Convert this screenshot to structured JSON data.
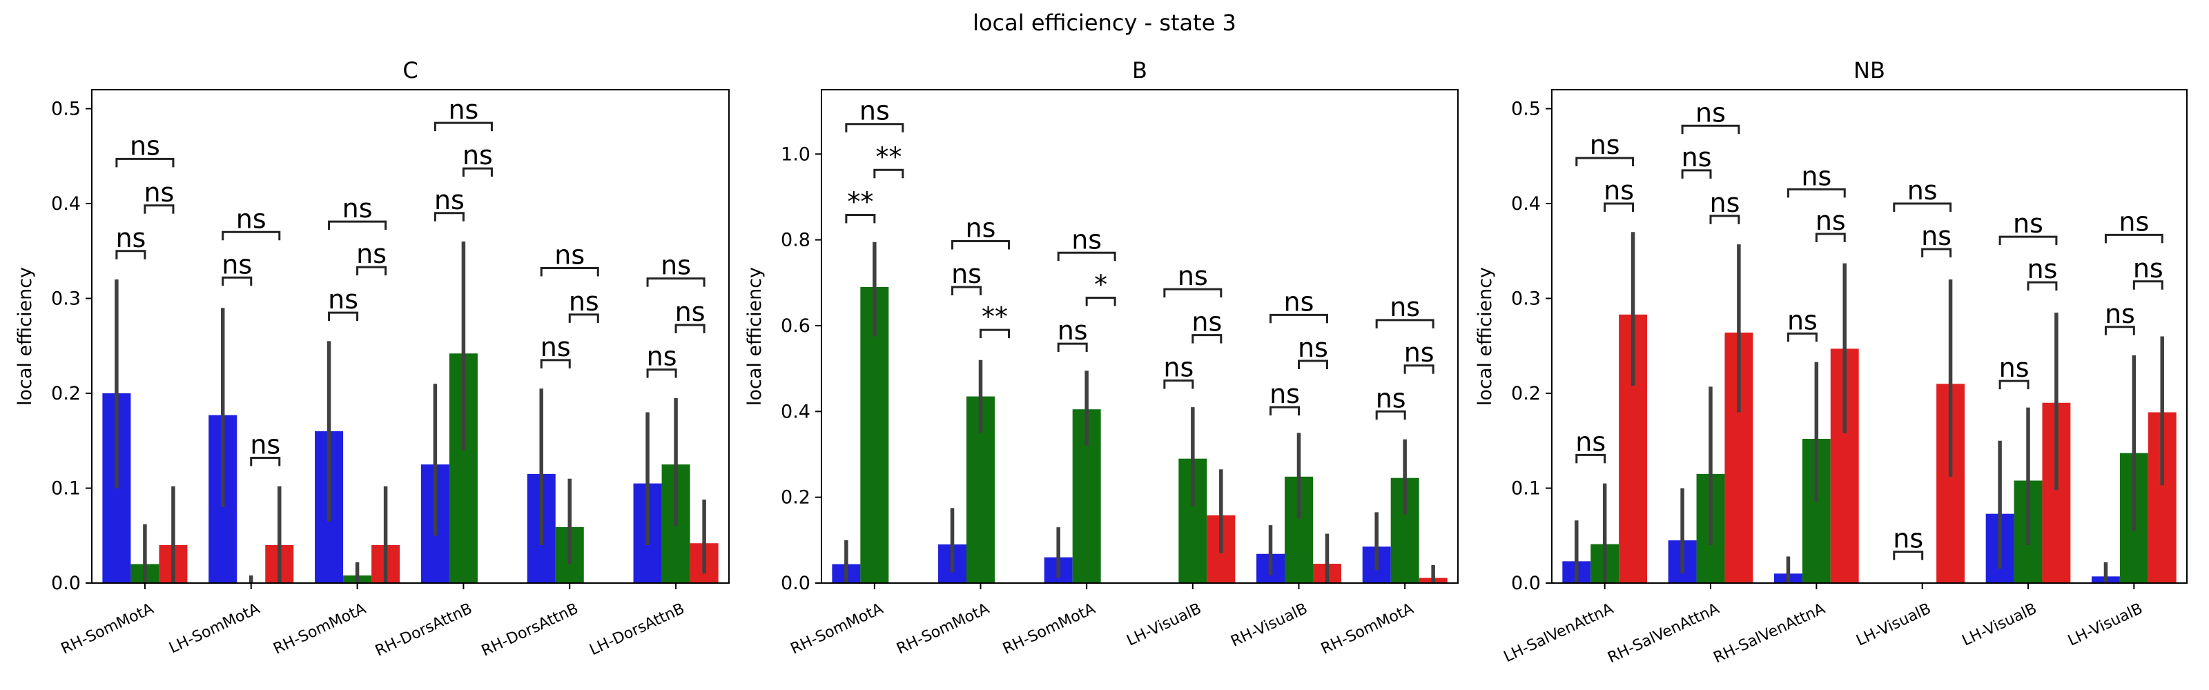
{
  "figure": {
    "title": "local efficiency - state 3"
  },
  "colors": {
    "blue": "#2020e0",
    "green": "#107010",
    "red": "#e02020",
    "errorbar": "#404040"
  },
  "chart_data": [
    {
      "type": "bar",
      "title": "C",
      "ylabel": "local efficiency",
      "ylim": [
        0,
        0.52
      ],
      "yticks": [
        0.0,
        0.1,
        0.2,
        0.3,
        0.4,
        0.5
      ],
      "ytick_labels": [
        "0.0",
        "0.1",
        "0.2",
        "0.3",
        "0.4",
        "0.5"
      ],
      "categories": [
        "RH-SomMotA",
        "LH-SomMotA",
        "RH-SomMotA",
        "RH-DorsAttnB",
        "RH-DorsAttnB",
        "LH-DorsAttnB"
      ],
      "series": [
        {
          "color": "blue",
          "values": [
            0.2,
            0.177,
            0.16,
            0.125,
            0.115,
            0.105
          ],
          "ci": [
            [
              0.1,
              0.32
            ],
            [
              0.08,
              0.29
            ],
            [
              0.065,
              0.255
            ],
            [
              0.05,
              0.21
            ],
            [
              0.04,
              0.205
            ],
            [
              0.04,
              0.18
            ]
          ]
        },
        {
          "color": "green",
          "values": [
            0.02,
            0.0,
            0.008,
            0.242,
            0.059,
            0.125
          ],
          "ci": [
            [
              0.0,
              0.062
            ],
            [
              0.0,
              0.008
            ],
            [
              0.0,
              0.022
            ],
            [
              0.14,
              0.36
            ],
            [
              0.02,
              0.11
            ],
            [
              0.06,
              0.195
            ]
          ]
        },
        {
          "color": "red",
          "values": [
            0.04,
            0.04,
            0.04,
            0.0,
            0.0,
            0.042
          ],
          "ci": [
            [
              0.0,
              0.102
            ],
            [
              0.0,
              0.102
            ],
            [
              0.0,
              0.102
            ],
            [
              0.0,
              0.0
            ],
            [
              0.0,
              0.0
            ],
            [
              0.01,
              0.088
            ]
          ]
        }
      ],
      "annotations": [
        {
          "group": 0,
          "from": 0,
          "to": 1,
          "y": 0.35,
          "label": "ns"
        },
        {
          "group": 0,
          "from": 1,
          "to": 2,
          "y": 0.398,
          "label": "ns"
        },
        {
          "group": 0,
          "from": 0,
          "to": 2,
          "y": 0.447,
          "label": "ns"
        },
        {
          "group": 1,
          "from": 0,
          "to": 1,
          "y": 0.322,
          "label": "ns"
        },
        {
          "group": 1,
          "from": 1,
          "to": 2,
          "y": 0.132,
          "label": "ns"
        },
        {
          "group": 1,
          "from": 0,
          "to": 2,
          "y": 0.37,
          "label": "ns"
        },
        {
          "group": 2,
          "from": 0,
          "to": 1,
          "y": 0.285,
          "label": "ns"
        },
        {
          "group": 2,
          "from": 1,
          "to": 2,
          "y": 0.333,
          "label": "ns"
        },
        {
          "group": 2,
          "from": 0,
          "to": 2,
          "y": 0.381,
          "label": "ns"
        },
        {
          "group": 3,
          "from": 0,
          "to": 1,
          "y": 0.39,
          "label": "ns"
        },
        {
          "group": 3,
          "from": 1,
          "to": 2,
          "y": 0.437,
          "label": "ns"
        },
        {
          "group": 3,
          "from": 0,
          "to": 2,
          "y": 0.485,
          "label": "ns"
        },
        {
          "group": 4,
          "from": 0,
          "to": 1,
          "y": 0.235,
          "label": "ns"
        },
        {
          "group": 4,
          "from": 1,
          "to": 2,
          "y": 0.283,
          "label": "ns"
        },
        {
          "group": 4,
          "from": 0,
          "to": 2,
          "y": 0.332,
          "label": "ns"
        },
        {
          "group": 5,
          "from": 0,
          "to": 1,
          "y": 0.225,
          "label": "ns"
        },
        {
          "group": 5,
          "from": 1,
          "to": 2,
          "y": 0.272,
          "label": "ns"
        },
        {
          "group": 5,
          "from": 0,
          "to": 2,
          "y": 0.321,
          "label": "ns"
        }
      ]
    },
    {
      "type": "bar",
      "title": "B",
      "ylabel": "local efficiency",
      "ylim": [
        0,
        1.15
      ],
      "yticks": [
        0.0,
        0.2,
        0.4,
        0.6,
        0.8,
        1.0
      ],
      "ytick_labels": [
        "0.0",
        "0.2",
        "0.4",
        "0.6",
        "0.8",
        "1.0"
      ],
      "categories": [
        "RH-SomMotA",
        "RH-SomMotA",
        "RH-SomMotA",
        "LH-VisualB",
        "RH-VisualB",
        "RH-SomMotA"
      ],
      "series": [
        {
          "color": "blue",
          "values": [
            0.044,
            0.09,
            0.06,
            0.0,
            0.068,
            0.085
          ],
          "ci": [
            [
              0.0,
              0.1
            ],
            [
              0.025,
              0.175
            ],
            [
              0.012,
              0.13
            ],
            [
              0.0,
              0.0
            ],
            [
              0.018,
              0.135
            ],
            [
              0.03,
              0.165
            ]
          ]
        },
        {
          "color": "green",
          "values": [
            0.69,
            0.435,
            0.405,
            0.29,
            0.248,
            0.245
          ],
          "ci": [
            [
              0.575,
              0.795
            ],
            [
              0.35,
              0.52
            ],
            [
              0.32,
              0.495
            ],
            [
              0.18,
              0.41
            ],
            [
              0.15,
              0.35
            ],
            [
              0.16,
              0.335
            ]
          ]
        },
        {
          "color": "red",
          "values": [
            0.0,
            0.0,
            0.0,
            0.158,
            0.045,
            0.012
          ],
          "ci": [
            [
              0.0,
              0.0
            ],
            [
              0.0,
              0.0
            ],
            [
              0.0,
              0.0
            ],
            [
              0.07,
              0.265
            ],
            [
              0.0,
              0.115
            ],
            [
              0.0,
              0.042
            ]
          ]
        }
      ],
      "annotations": [
        {
          "group": 0,
          "from": 0,
          "to": 1,
          "y": 0.858,
          "label": "**"
        },
        {
          "group": 0,
          "from": 1,
          "to": 2,
          "y": 0.963,
          "label": "**"
        },
        {
          "group": 0,
          "from": 0,
          "to": 2,
          "y": 1.07,
          "label": "ns"
        },
        {
          "group": 1,
          "from": 0,
          "to": 1,
          "y": 0.69,
          "label": "ns"
        },
        {
          "group": 1,
          "from": 1,
          "to": 2,
          "y": 0.59,
          "label": "**"
        },
        {
          "group": 1,
          "from": 0,
          "to": 2,
          "y": 0.797,
          "label": "ns"
        },
        {
          "group": 2,
          "from": 0,
          "to": 1,
          "y": 0.558,
          "label": "ns"
        },
        {
          "group": 2,
          "from": 1,
          "to": 2,
          "y": 0.665,
          "label": "*"
        },
        {
          "group": 2,
          "from": 0,
          "to": 2,
          "y": 0.77,
          "label": "ns"
        },
        {
          "group": 3,
          "from": 0,
          "to": 1,
          "y": 0.472,
          "label": "ns"
        },
        {
          "group": 3,
          "from": 1,
          "to": 2,
          "y": 0.578,
          "label": "ns"
        },
        {
          "group": 3,
          "from": 0,
          "to": 2,
          "y": 0.685,
          "label": "ns"
        },
        {
          "group": 4,
          "from": 0,
          "to": 1,
          "y": 0.41,
          "label": "ns"
        },
        {
          "group": 4,
          "from": 1,
          "to": 2,
          "y": 0.518,
          "label": "ns"
        },
        {
          "group": 4,
          "from": 0,
          "to": 2,
          "y": 0.625,
          "label": "ns"
        },
        {
          "group": 5,
          "from": 0,
          "to": 1,
          "y": 0.4,
          "label": "ns"
        },
        {
          "group": 5,
          "from": 1,
          "to": 2,
          "y": 0.507,
          "label": "ns"
        },
        {
          "group": 5,
          "from": 0,
          "to": 2,
          "y": 0.613,
          "label": "ns"
        }
      ]
    },
    {
      "type": "bar",
      "title": "NB",
      "ylabel": "local efficiency",
      "ylim": [
        0,
        0.52
      ],
      "yticks": [
        0.0,
        0.1,
        0.2,
        0.3,
        0.4,
        0.5
      ],
      "ytick_labels": [
        "0.0",
        "0.1",
        "0.2",
        "0.3",
        "0.4",
        "0.5"
      ],
      "categories": [
        "LH-SalVenAttnA",
        "RH-SalVenAttnA",
        "RH-SalVenAttnA",
        "LH-VisualB",
        "LH-VisualB",
        "LH-VisualB"
      ],
      "series": [
        {
          "color": "blue",
          "values": [
            0.023,
            0.045,
            0.01,
            0.0,
            0.073,
            0.007
          ],
          "ci": [
            [
              0.0,
              0.066
            ],
            [
              0.01,
              0.1
            ],
            [
              0.0,
              0.028
            ],
            [
              0.0,
              0.0
            ],
            [
              0.015,
              0.15
            ],
            [
              0.0,
              0.022
            ]
          ]
        },
        {
          "color": "green",
          "values": [
            0.041,
            0.115,
            0.152,
            0.0,
            0.108,
            0.137
          ],
          "ci": [
            [
              0.0,
              0.105
            ],
            [
              0.04,
              0.207
            ],
            [
              0.085,
              0.233
            ],
            [
              0.0,
              0.0
            ],
            [
              0.04,
              0.185
            ],
            [
              0.055,
              0.24
            ]
          ]
        },
        {
          "color": "red",
          "values": [
            0.283,
            0.264,
            0.247,
            0.21,
            0.19,
            0.18
          ],
          "ci": [
            [
              0.208,
              0.37
            ],
            [
              0.18,
              0.357
            ],
            [
              0.158,
              0.337
            ],
            [
              0.112,
              0.32
            ],
            [
              0.098,
              0.285
            ],
            [
              0.103,
              0.26
            ]
          ]
        }
      ],
      "annotations": [
        {
          "group": 0,
          "from": 0,
          "to": 1,
          "y": 0.135,
          "label": "ns"
        },
        {
          "group": 0,
          "from": 1,
          "to": 2,
          "y": 0.4,
          "label": "ns"
        },
        {
          "group": 0,
          "from": 0,
          "to": 2,
          "y": 0.448,
          "label": "ns"
        },
        {
          "group": 1,
          "from": 0,
          "to": 1,
          "y": 0.435,
          "label": "ns"
        },
        {
          "group": 1,
          "from": 1,
          "to": 2,
          "y": 0.387,
          "label": "ns"
        },
        {
          "group": 1,
          "from": 0,
          "to": 2,
          "y": 0.482,
          "label": "ns"
        },
        {
          "group": 2,
          "from": 0,
          "to": 1,
          "y": 0.263,
          "label": "ns"
        },
        {
          "group": 2,
          "from": 1,
          "to": 2,
          "y": 0.368,
          "label": "ns"
        },
        {
          "group": 2,
          "from": 0,
          "to": 2,
          "y": 0.415,
          "label": "ns"
        },
        {
          "group": 3,
          "from": 0,
          "to": 1,
          "y": 0.033,
          "label": "ns"
        },
        {
          "group": 3,
          "from": 1,
          "to": 2,
          "y": 0.352,
          "label": "ns"
        },
        {
          "group": 3,
          "from": 0,
          "to": 2,
          "y": 0.4,
          "label": "ns"
        },
        {
          "group": 4,
          "from": 0,
          "to": 1,
          "y": 0.213,
          "label": "ns"
        },
        {
          "group": 4,
          "from": 1,
          "to": 2,
          "y": 0.317,
          "label": "ns"
        },
        {
          "group": 4,
          "from": 0,
          "to": 2,
          "y": 0.365,
          "label": "ns"
        },
        {
          "group": 5,
          "from": 0,
          "to": 1,
          "y": 0.27,
          "label": "ns"
        },
        {
          "group": 5,
          "from": 1,
          "to": 2,
          "y": 0.318,
          "label": "ns"
        },
        {
          "group": 5,
          "from": 0,
          "to": 2,
          "y": 0.367,
          "label": "ns"
        }
      ]
    }
  ]
}
